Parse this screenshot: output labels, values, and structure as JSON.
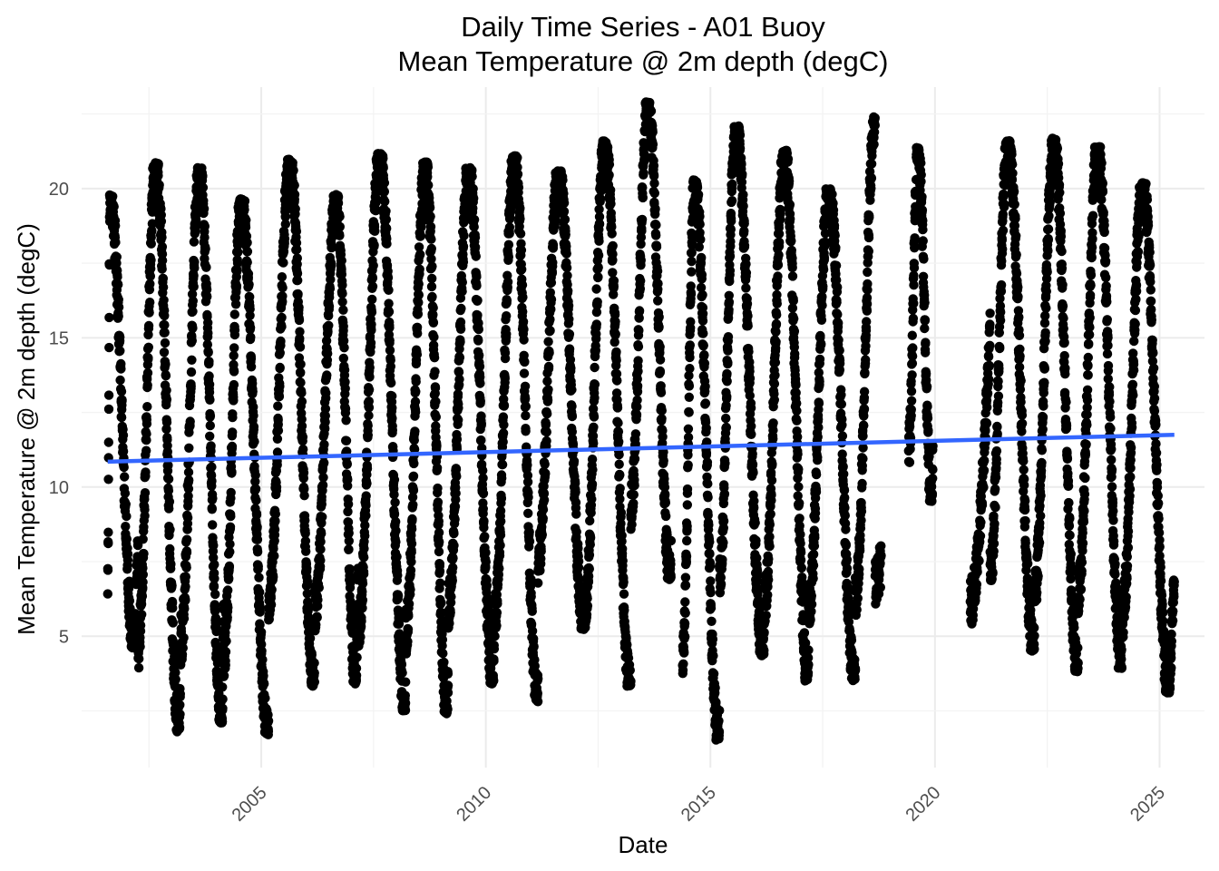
{
  "chart_data": {
    "type": "scatter",
    "title": "Daily Time Series - A01 Buoy",
    "subtitle": "Mean Temperature @ 2m depth (degC)",
    "xlabel": "Date",
    "ylabel": "Mean Temperature @ 2m depth (degC)",
    "x_range": [
      "2001-01-01",
      "2026-01-01"
    ],
    "ylim": [
      0.6,
      23.4
    ],
    "x_ticks": [
      "2005",
      "2010",
      "2015",
      "2020",
      "2025"
    ],
    "y_ticks": [
      "5",
      "10",
      "15",
      "20"
    ],
    "grid": true,
    "point_color": "#000000",
    "trend_color": "#3366ff",
    "trend_line": [
      {
        "x": "2001-08-01",
        "y": 10.85
      },
      {
        "x": "2025-05-01",
        "y": 11.75
      }
    ],
    "seasonal_cycles": [
      {
        "year": 2001,
        "min_date": "2002-03-05",
        "min": 4.6,
        "max_date": "2001-08-20",
        "max": 19.8,
        "start": "2001-08-01",
        "end": "2002-04-05"
      },
      {
        "year": 2002,
        "min_date": "2003-03-05",
        "min": 1.8,
        "max_date": "2002-08-25",
        "max": 20.9,
        "start": "2002-04-05",
        "end": "2003-03-20"
      },
      {
        "year": 2003,
        "min_date": "2004-02-15",
        "min": 2.1,
        "max_date": "2003-08-15",
        "max": 20.7,
        "start": "2003-03-20",
        "end": "2004-03-01"
      },
      {
        "year": 2004,
        "min_date": "2005-02-25",
        "min": 1.7,
        "max_date": "2004-07-20",
        "max": 19.7,
        "start": "2004-03-01",
        "end": "2005-03-01"
      },
      {
        "year": 2005,
        "min_date": "2006-03-05",
        "min": 3.3,
        "max_date": "2005-08-20",
        "max": 21.0,
        "start": "2005-03-01",
        "end": "2006-03-10"
      },
      {
        "year": 2006,
        "min_date": "2007-02-10",
        "min": 3.4,
        "max_date": "2006-09-01",
        "max": 19.8,
        "start": "2006-03-10",
        "end": "2007-03-01"
      },
      {
        "year": 2007,
        "min_date": "2008-03-15",
        "min": 2.5,
        "max_date": "2007-08-20",
        "max": 21.2,
        "start": "2007-03-01",
        "end": "2008-03-20"
      },
      {
        "year": 2008,
        "min_date": "2009-02-20",
        "min": 2.4,
        "max_date": "2008-08-25",
        "max": 20.9,
        "start": "2008-03-20",
        "end": "2009-03-01"
      },
      {
        "year": 2009,
        "min_date": "2010-03-01",
        "min": 3.4,
        "max_date": "2009-08-15",
        "max": 20.7,
        "start": "2009-03-01",
        "end": "2010-03-10"
      },
      {
        "year": 2010,
        "min_date": "2011-02-25",
        "min": 2.8,
        "max_date": "2010-08-20",
        "max": 21.1,
        "start": "2010-03-10",
        "end": "2011-03-01"
      },
      {
        "year": 2011,
        "min_date": "2012-03-10",
        "min": 5.2,
        "max_date": "2011-08-15",
        "max": 20.6,
        "start": "2011-03-01",
        "end": "2012-03-15"
      },
      {
        "year": 2012,
        "min_date": "2013-03-20",
        "min": 3.3,
        "max_date": "2012-08-25",
        "max": 21.6,
        "start": "2012-03-15",
        "end": "2013-03-25"
      },
      {
        "year": 2013,
        "min_date": "2014-02-10",
        "min": 6.9,
        "max_date": "2013-08-10",
        "max": 22.9,
        "start": "2013-03-25",
        "end": "2014-02-15"
      },
      {
        "year": 2014,
        "min_date": "2015-03-10",
        "min": 1.5,
        "max_date": "2014-08-25",
        "max": 20.3,
        "start": "2014-05-20",
        "end": "2015-03-15"
      },
      {
        "year": 2015,
        "min_date": "2016-03-10",
        "min": 4.3,
        "max_date": "2015-07-25",
        "max": 22.1,
        "start": "2015-03-15",
        "end": "2016-03-15"
      },
      {
        "year": 2016,
        "min_date": "2017-03-05",
        "min": 3.5,
        "max_date": "2016-08-25",
        "max": 21.3,
        "start": "2016-03-15",
        "end": "2017-03-10"
      },
      {
        "year": 2017,
        "min_date": "2018-03-20",
        "min": 3.5,
        "max_date": "2017-08-20",
        "max": 20.0,
        "start": "2017-03-10",
        "end": "2018-03-25"
      },
      {
        "year": 2018,
        "min_date": "2018-03-25",
        "min": 3.5,
        "max_date": "2018-09-01",
        "max": 22.4,
        "start": "2018-03-25",
        "end": "2018-10-20"
      },
      {
        "year": 2019,
        "min_date": "2019-12-05",
        "min": 9.5,
        "max_date": "2019-08-15",
        "max": 21.4,
        "start": "2019-06-01",
        "end": "2019-12-15"
      },
      {
        "year": 2020,
        "min_date": "2021-03-20",
        "min": 3.4,
        "max_date": "2021-08-01",
        "max": 21.6,
        "start": "2020-10-15",
        "end": "2021-03-25"
      },
      {
        "year": 2021,
        "min_date": "2022-03-15",
        "min": 4.5,
        "max_date": "2021-08-15",
        "max": 21.6,
        "start": "2021-03-25",
        "end": "2022-03-20"
      },
      {
        "year": 2022,
        "min_date": "2023-03-05",
        "min": 3.8,
        "max_date": "2022-08-25",
        "max": 21.7,
        "start": "2022-03-20",
        "end": "2023-03-10"
      },
      {
        "year": 2023,
        "min_date": "2024-02-25",
        "min": 3.9,
        "max_date": "2023-08-15",
        "max": 21.4,
        "start": "2023-03-10",
        "end": "2024-03-01"
      },
      {
        "year": 2024,
        "min_date": "2025-03-15",
        "min": 3.1,
        "max_date": "2024-08-15",
        "max": 20.2,
        "start": "2024-03-01",
        "end": "2025-05-01"
      }
    ]
  }
}
